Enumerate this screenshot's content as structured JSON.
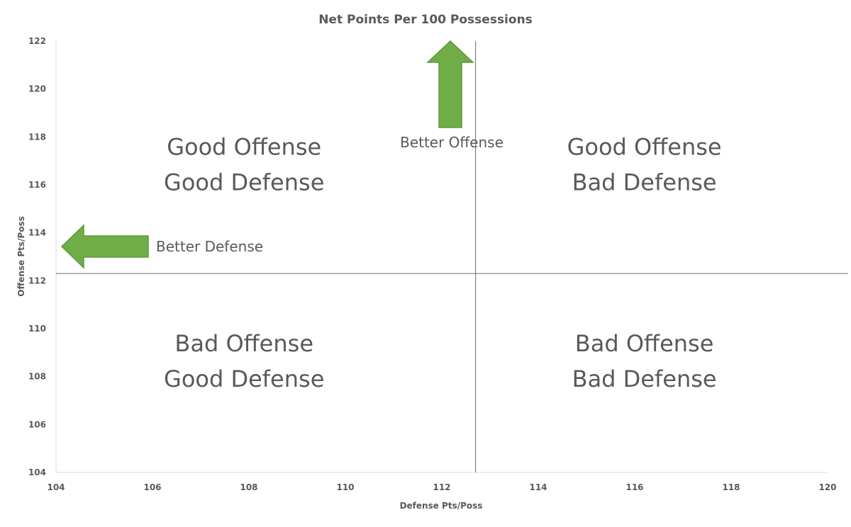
{
  "chart_data": {
    "type": "scatter",
    "title": "Net Points Per 100 Possessions",
    "xlabel": "Defense Pts/Poss",
    "ylabel": "Offense Pts/Poss",
    "xlim": [
      104,
      120
    ],
    "ylim": [
      104,
      122
    ],
    "x_ticks": [
      "104",
      "106",
      "108",
      "110",
      "112",
      "114",
      "116",
      "118",
      "120"
    ],
    "y_ticks": [
      "104",
      "106",
      "108",
      "110",
      "112",
      "114",
      "116",
      "118",
      "120",
      "122"
    ],
    "grid": false,
    "reference_lines": {
      "x_divider": 112.7,
      "y_divider": 112.3
    },
    "quadrants": [
      {
        "line1": "Good Offense",
        "line2": "Good Defense",
        "x": 107.9,
        "y": 116.9
      },
      {
        "line1": "Good Offense",
        "line2": "Bad Defense",
        "x": 116.2,
        "y": 116.9
      },
      {
        "line1": "Bad Offense",
        "line2": "Good Defense",
        "x": 107.9,
        "y": 108.7
      },
      {
        "line1": "Bad Offense",
        "line2": "Bad Defense",
        "x": 116.2,
        "y": 108.7
      }
    ],
    "annotations": [
      {
        "label": "Better Offense",
        "direction": "up",
        "x": 112.2,
        "y": 118.0
      },
      {
        "label": "Better Defense",
        "direction": "left",
        "x": 106.4,
        "y": 113.4
      }
    ],
    "arrow_color": "#70ad47"
  }
}
